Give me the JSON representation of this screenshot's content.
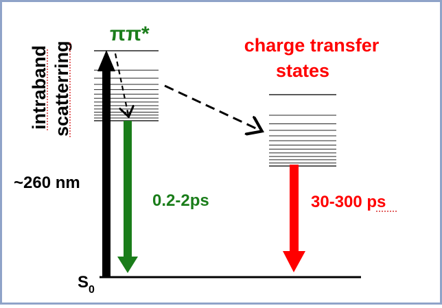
{
  "diagram": {
    "labels": {
      "intraband_line1": "intraband",
      "intraband_line2": "scatterring",
      "pi_pi_star": "ππ*",
      "ct_line1": "charge transfer",
      "ct_line2": "states",
      "excitation": "~260 nm",
      "green_time": "0.2-2ps",
      "red_time": "30-300 ps",
      "ground_state_S": "S",
      "ground_state_sub": "0"
    },
    "colors": {
      "frame": "#8fa3c8",
      "black": "#000000",
      "green": "#1a7d1a",
      "red": "#ff0000",
      "level_lines": "#222222",
      "underline": "#d00000"
    },
    "level_counts": {
      "pi_pi_star_levels": 14,
      "charge_transfer_levels": 13
    }
  }
}
